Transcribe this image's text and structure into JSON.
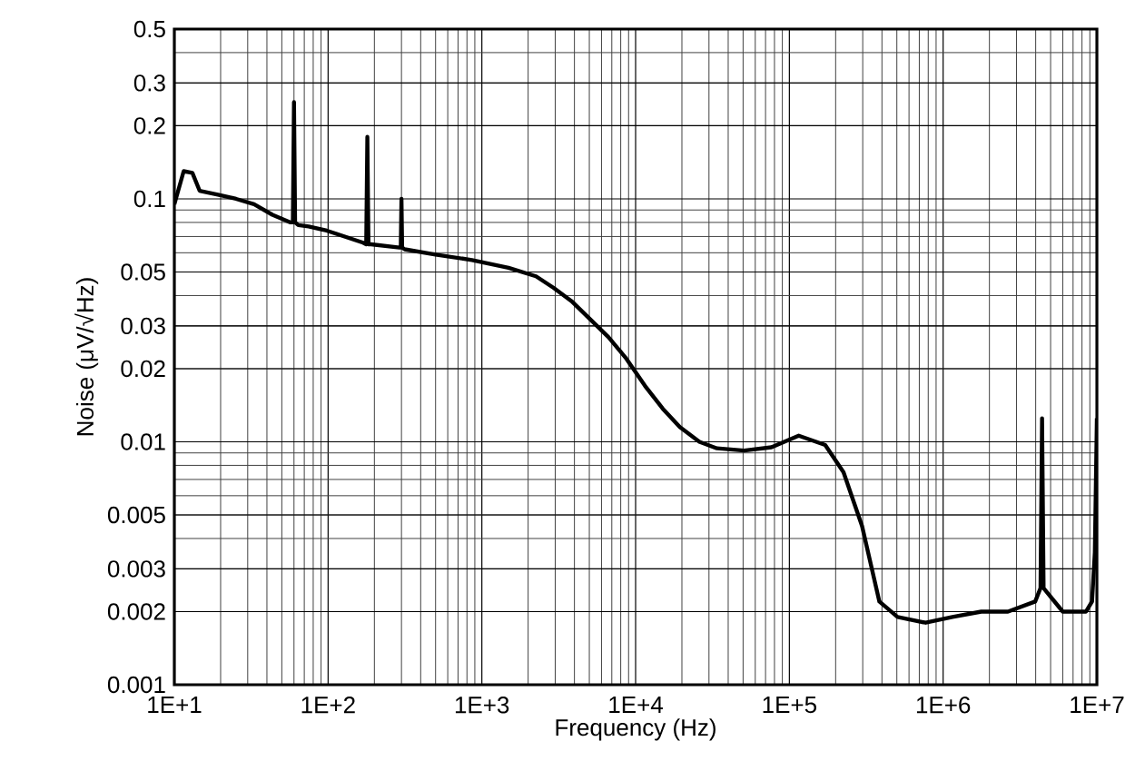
{
  "chart_data": {
    "type": "line",
    "xlabel": "Frequency (Hz)",
    "ylabel": "Noise (μV/√Hz)",
    "log": "xy",
    "grid": true,
    "line_style": "solid",
    "marker": "none",
    "xlim": [
      10,
      10000000
    ],
    "ylim": [
      0.001,
      0.5
    ],
    "xticks": [
      {
        "value": 10,
        "label": "1E+1"
      },
      {
        "value": 100,
        "label": "1E+2"
      },
      {
        "value": 1000,
        "label": "1E+3"
      },
      {
        "value": 10000,
        "label": "1E+4"
      },
      {
        "value": 100000,
        "label": "1E+5"
      },
      {
        "value": 1000000,
        "label": "1E+6"
      },
      {
        "value": 10000000,
        "label": "1E+7"
      }
    ],
    "yticks": [
      0.001,
      0.002,
      0.003,
      0.005,
      0.01,
      0.02,
      0.03,
      0.05,
      0.1,
      0.2,
      0.3,
      0.5
    ],
    "series": [
      {
        "color": "#000000",
        "x": [
          10,
          11.5,
          13.1,
          14.6,
          19.2,
          25.2,
          33,
          43.4,
          57,
          59,
          60,
          61,
          64,
          74.7,
          98,
          169,
          177,
          180,
          183,
          190,
          291,
          297,
          300,
          303,
          315,
          500,
          862,
          1490,
          2250,
          2930,
          3820,
          5050,
          6650,
          8700,
          11500,
          15000,
          19400,
          26000,
          33800,
          50800,
          76500,
          115000,
          171000,
          225000,
          297000,
          385000,
          505000,
          770000,
          1150000,
          1770000,
          2640000,
          3970000,
          4300000,
          4400000,
          4500000,
          6000000,
          8500000,
          9300000,
          9700000,
          10000000
        ],
        "values": [
          0.095,
          0.13,
          0.128,
          0.108,
          0.104,
          0.1,
          0.095,
          0.086,
          0.08,
          0.08,
          0.25,
          0.08,
          0.078,
          0.077,
          0.074,
          0.066,
          0.065,
          0.18,
          0.065,
          0.065,
          0.063,
          0.063,
          0.1,
          0.063,
          0.062,
          0.059,
          0.056,
          0.052,
          0.048,
          0.043,
          0.038,
          0.032,
          0.027,
          0.022,
          0.017,
          0.0137,
          0.0115,
          0.01,
          0.0094,
          0.0092,
          0.0095,
          0.0106,
          0.0097,
          0.0075,
          0.0045,
          0.0022,
          0.0019,
          0.0018,
          0.0019,
          0.002,
          0.002,
          0.0022,
          0.0025,
          0.0125,
          0.0025,
          0.002,
          0.002,
          0.0022,
          0.0035,
          0.0125
        ]
      }
    ]
  }
}
